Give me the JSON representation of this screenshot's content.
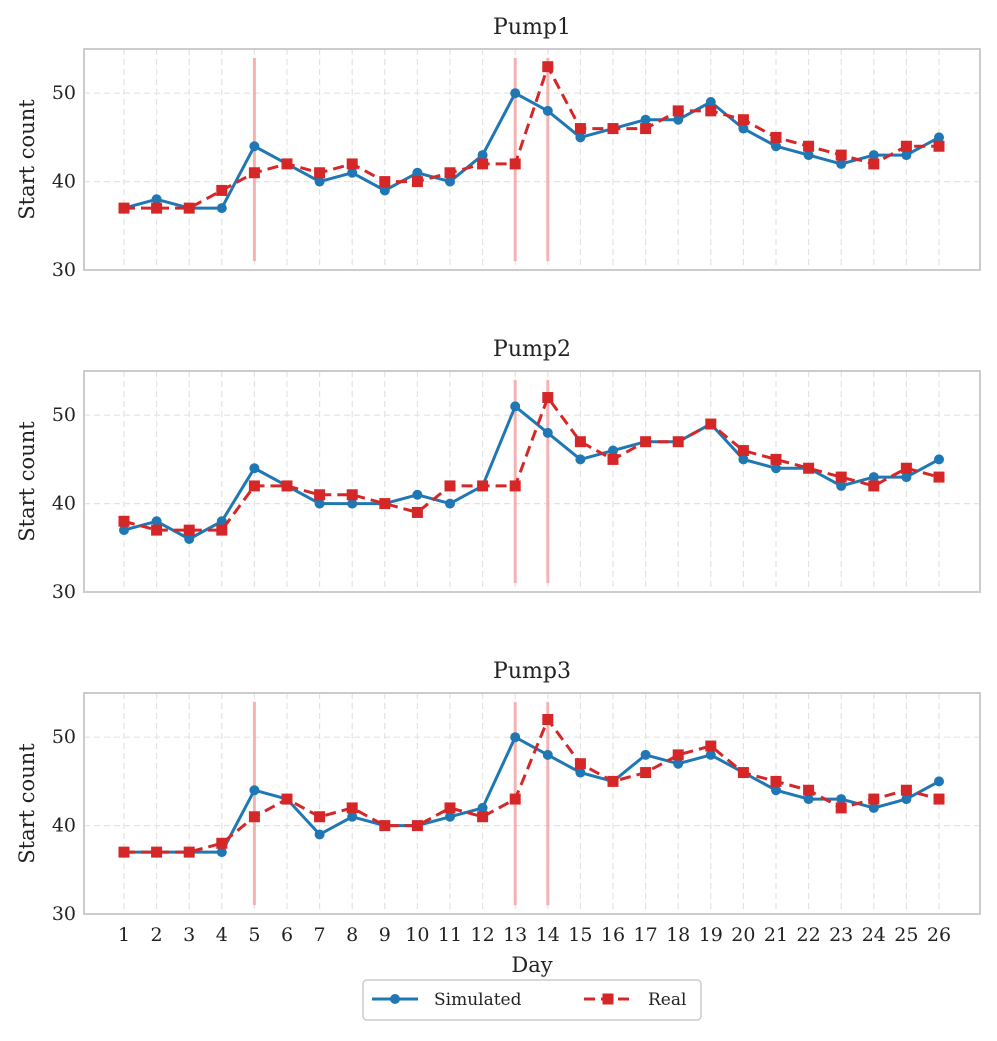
{
  "chart_data": [
    {
      "type": "line",
      "title": "Pump1",
      "xlabel": "",
      "ylabel": "Start count",
      "ylim": [
        30,
        55
      ],
      "yticks": [
        30,
        40,
        50
      ],
      "x": [
        1,
        2,
        3,
        4,
        5,
        6,
        7,
        8,
        9,
        10,
        11,
        12,
        13,
        14,
        15,
        16,
        17,
        18,
        19,
        20,
        21,
        22,
        23,
        24,
        25,
        26
      ],
      "series": [
        {
          "name": "Simulated",
          "values": [
            37,
            38,
            37,
            37,
            44,
            42,
            40,
            41,
            39,
            41,
            40,
            43,
            50,
            48,
            45,
            46,
            47,
            47,
            49,
            46,
            44,
            43,
            42,
            43,
            43,
            45
          ]
        },
        {
          "name": "Real",
          "values": [
            37,
            37,
            37,
            39,
            41,
            42,
            41,
            42,
            40,
            40,
            41,
            42,
            42,
            53,
            46,
            46,
            46,
            48,
            48,
            47,
            45,
            44,
            43,
            42,
            44,
            44
          ]
        }
      ],
      "event_days": [
        5,
        13,
        14
      ],
      "grid": true
    },
    {
      "type": "line",
      "title": "Pump2",
      "xlabel": "",
      "ylabel": "Start count",
      "ylim": [
        30,
        55
      ],
      "yticks": [
        30,
        40,
        50
      ],
      "x": [
        1,
        2,
        3,
        4,
        5,
        6,
        7,
        8,
        9,
        10,
        11,
        12,
        13,
        14,
        15,
        16,
        17,
        18,
        19,
        20,
        21,
        22,
        23,
        24,
        25,
        26
      ],
      "series": [
        {
          "name": "Simulated",
          "values": [
            37,
            38,
            36,
            38,
            44,
            42,
            40,
            40,
            40,
            41,
            40,
            42,
            51,
            48,
            45,
            46,
            47,
            47,
            49,
            45,
            44,
            44,
            42,
            43,
            43,
            45
          ]
        },
        {
          "name": "Real",
          "values": [
            38,
            37,
            37,
            37,
            42,
            42,
            41,
            41,
            40,
            39,
            42,
            42,
            42,
            52,
            47,
            45,
            47,
            47,
            49,
            46,
            45,
            44,
            43,
            42,
            44,
            43
          ]
        }
      ],
      "event_days": [
        13,
        14
      ],
      "grid": true
    },
    {
      "type": "line",
      "title": "Pump3",
      "xlabel": "Day",
      "ylabel": "Start count",
      "ylim": [
        30,
        55
      ],
      "yticks": [
        30,
        40,
        50
      ],
      "x": [
        1,
        2,
        3,
        4,
        5,
        6,
        7,
        8,
        9,
        10,
        11,
        12,
        13,
        14,
        15,
        16,
        17,
        18,
        19,
        20,
        21,
        22,
        23,
        24,
        25,
        26
      ],
      "series": [
        {
          "name": "Simulated",
          "values": [
            37,
            37,
            37,
            37,
            44,
            43,
            39,
            41,
            40,
            40,
            41,
            42,
            50,
            48,
            46,
            45,
            48,
            47,
            48,
            46,
            44,
            43,
            43,
            42,
            43,
            45
          ]
        },
        {
          "name": "Real",
          "values": [
            37,
            37,
            37,
            38,
            41,
            43,
            41,
            42,
            40,
            40,
            42,
            41,
            43,
            52,
            47,
            45,
            46,
            48,
            49,
            46,
            45,
            44,
            42,
            43,
            44,
            43
          ]
        }
      ],
      "event_days": [
        5,
        13,
        14
      ],
      "grid": true
    }
  ],
  "legend": {
    "placement": "bottom-center",
    "entries": [
      {
        "label": "Simulated",
        "color": "#1f77b4",
        "marker": "circle",
        "line": "solid"
      },
      {
        "label": "Real",
        "color": "#d62728",
        "marker": "square",
        "line": "dashed"
      }
    ]
  },
  "colors": {
    "simulated": "#1f77b4",
    "real": "#d62728",
    "event_line": "#f4a6a6",
    "grid": "#e3e3e3",
    "frame": "#cccccc"
  }
}
